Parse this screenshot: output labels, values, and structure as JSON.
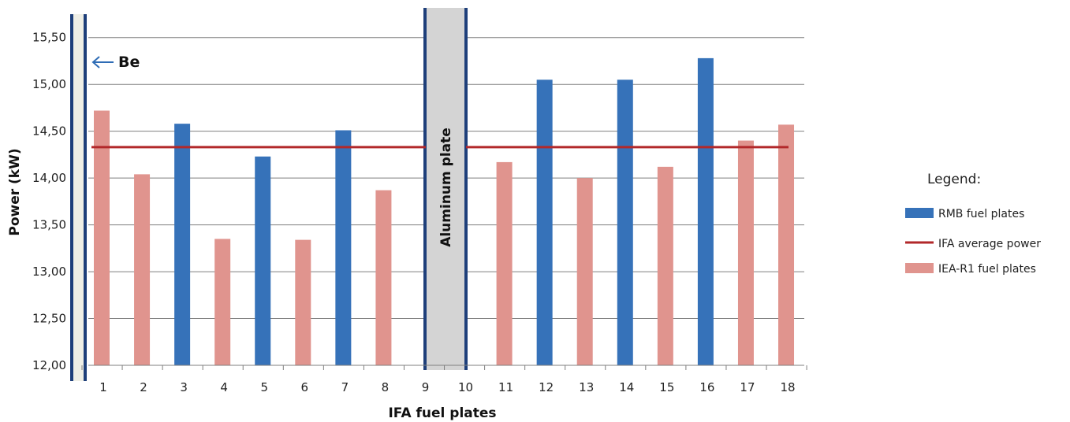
{
  "chart_data": {
    "type": "bar",
    "xlabel": "IFA fuel plates",
    "ylabel": "Power (kW)",
    "ylim": [
      12.0,
      15.75
    ],
    "yticks": [
      "12,00",
      "12,50",
      "13,00",
      "13,50",
      "14,00",
      "14,50",
      "15,00",
      "15,50"
    ],
    "categories": [
      "1",
      "2",
      "3",
      "4",
      "5",
      "6",
      "7",
      "8",
      "9",
      "10",
      "11",
      "12",
      "13",
      "14",
      "15",
      "16",
      "17",
      "18"
    ],
    "series": [
      {
        "name": "RMB fuel plates",
        "color": "#3672b9",
        "values": [
          null,
          null,
          14.58,
          null,
          14.23,
          null,
          14.51,
          null,
          null,
          null,
          null,
          15.05,
          null,
          15.05,
          null,
          15.28,
          null,
          null
        ]
      },
      {
        "name": "IEA-R1 fuel plates",
        "color": "#e0948e",
        "values": [
          14.72,
          14.04,
          null,
          13.35,
          null,
          13.34,
          null,
          13.87,
          null,
          null,
          14.17,
          null,
          14.0,
          null,
          14.12,
          null,
          14.4,
          14.57
        ]
      }
    ],
    "average_line": {
      "name": "IFA average power",
      "value": 14.33,
      "color": "#b2282a"
    },
    "annotations": {
      "be_label": "Be",
      "aluminum_label": "Aluminum plate"
    },
    "legend": {
      "title": "Legend:",
      "placement": "right"
    }
  }
}
